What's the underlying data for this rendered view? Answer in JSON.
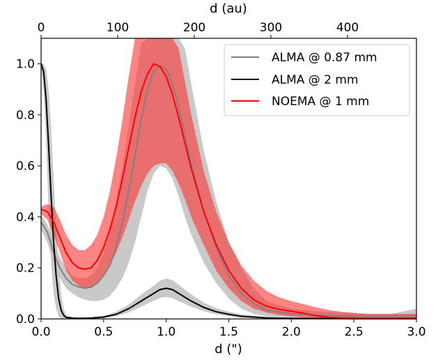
{
  "chart_data": {
    "type": "line",
    "xlabel": "d (\")",
    "x2label": "d (au)",
    "xlim": [
      0,
      3.0
    ],
    "ylim": [
      0,
      1.1
    ],
    "x2lim": [
      0,
      490
    ],
    "xticks": [
      "0.0",
      "0.5",
      "1.0",
      "1.5",
      "2.0",
      "2.5",
      "3.0"
    ],
    "yticks": [
      "0.0",
      "0.2",
      "0.4",
      "0.6",
      "0.8",
      "1.0"
    ],
    "x2ticks": [
      "0",
      "100",
      "200",
      "300",
      "400"
    ],
    "legend_position": "top-right",
    "series": [
      {
        "name": "ALMA @ 0.87 mm",
        "color": "#808080",
        "band_color": "#c0c0c0",
        "x": [
          0,
          0.05,
          0.1,
          0.15,
          0.2,
          0.25,
          0.3,
          0.35,
          0.4,
          0.45,
          0.5,
          0.55,
          0.6,
          0.65,
          0.7,
          0.75,
          0.8,
          0.85,
          0.9,
          0.95,
          1.0,
          1.05,
          1.1,
          1.15,
          1.2,
          1.3,
          1.4,
          1.5,
          1.6,
          1.7,
          1.8,
          2.0,
          2.2,
          2.4,
          2.6,
          2.8,
          3.0
        ],
        "y": [
          0.38,
          0.34,
          0.26,
          0.2,
          0.16,
          0.135,
          0.125,
          0.12,
          0.125,
          0.14,
          0.17,
          0.21,
          0.28,
          0.38,
          0.5,
          0.64,
          0.78,
          0.9,
          0.97,
          0.99,
          0.98,
          0.92,
          0.83,
          0.72,
          0.61,
          0.42,
          0.28,
          0.17,
          0.1,
          0.06,
          0.035,
          0.02,
          0.015,
          0.012,
          0.012,
          0.012,
          0.012
        ],
        "lower": [
          0.35,
          0.3,
          0.22,
          0.16,
          0.12,
          0.1,
          0.085,
          0.075,
          0.07,
          0.07,
          0.075,
          0.09,
          0.12,
          0.16,
          0.22,
          0.3,
          0.4,
          0.5,
          0.57,
          0.6,
          0.59,
          0.55,
          0.48,
          0.4,
          0.33,
          0.22,
          0.14,
          0.08,
          0.04,
          0.02,
          0.01,
          0.005,
          0.003,
          0.002,
          0.002,
          0.002,
          0.002
        ],
        "upper": [
          0.41,
          0.37,
          0.3,
          0.24,
          0.2,
          0.17,
          0.16,
          0.16,
          0.17,
          0.2,
          0.26,
          0.34,
          0.46,
          0.6,
          0.76,
          0.92,
          1.08,
          1.2,
          1.3,
          1.34,
          1.34,
          1.28,
          1.18,
          1.06,
          0.92,
          0.66,
          0.46,
          0.3,
          0.2,
          0.12,
          0.07,
          0.04,
          0.03,
          0.025,
          0.02,
          0.02,
          0.04
        ]
      },
      {
        "name": "ALMA @ 2 mm",
        "color": "#000000",
        "band_color": "#c0c0c0",
        "x": [
          0,
          0.02,
          0.04,
          0.06,
          0.08,
          0.1,
          0.12,
          0.14,
          0.16,
          0.18,
          0.2,
          0.25,
          0.3,
          0.4,
          0.5,
          0.6,
          0.7,
          0.8,
          0.9,
          0.95,
          1.0,
          1.05,
          1.1,
          1.2,
          1.3,
          1.4,
          1.5,
          1.6,
          1.8,
          2.0,
          2.5,
          3.0
        ],
        "y": [
          1.0,
          0.97,
          0.86,
          0.68,
          0.48,
          0.3,
          0.17,
          0.08,
          0.035,
          0.015,
          0.006,
          0.003,
          0.002,
          0.003,
          0.007,
          0.018,
          0.04,
          0.07,
          0.1,
          0.115,
          0.12,
          0.115,
          0.1,
          0.07,
          0.045,
          0.028,
          0.018,
          0.01,
          0.004,
          0.002,
          0.001,
          0.001
        ],
        "lower": [
          0.99,
          0.9,
          0.7,
          0.42,
          0.22,
          0.1,
          0.04,
          0.01,
          0.002,
          0.001,
          0.001,
          0.001,
          0.001,
          0.001,
          0.003,
          0.01,
          0.025,
          0.048,
          0.072,
          0.082,
          0.086,
          0.082,
          0.07,
          0.048,
          0.03,
          0.018,
          0.01,
          0.005,
          0.002,
          0.001,
          0.001,
          0.001
        ],
        "upper": [
          1.0,
          1.0,
          0.98,
          0.9,
          0.75,
          0.55,
          0.36,
          0.2,
          0.1,
          0.04,
          0.015,
          0.007,
          0.006,
          0.008,
          0.013,
          0.028,
          0.056,
          0.095,
          0.13,
          0.15,
          0.158,
          0.152,
          0.134,
          0.096,
          0.064,
          0.042,
          0.028,
          0.018,
          0.008,
          0.004,
          0.003,
          0.003
        ]
      },
      {
        "name": "NOEMA @ 1 mm",
        "color": "#ff0000",
        "band_color": "#ff3333",
        "x": [
          0,
          0.05,
          0.1,
          0.15,
          0.2,
          0.25,
          0.3,
          0.35,
          0.4,
          0.45,
          0.5,
          0.55,
          0.6,
          0.65,
          0.7,
          0.75,
          0.8,
          0.85,
          0.9,
          0.95,
          1.0,
          1.05,
          1.1,
          1.15,
          1.2,
          1.3,
          1.4,
          1.5,
          1.6,
          1.7,
          1.8,
          1.9,
          2.0,
          2.1,
          2.2,
          2.3,
          2.4,
          2.6,
          2.8,
          3.0
        ],
        "y": [
          0.43,
          0.42,
          0.38,
          0.32,
          0.26,
          0.22,
          0.2,
          0.195,
          0.2,
          0.23,
          0.28,
          0.35,
          0.44,
          0.55,
          0.67,
          0.79,
          0.89,
          0.96,
          1.0,
          0.99,
          0.95,
          0.88,
          0.79,
          0.69,
          0.59,
          0.42,
          0.29,
          0.19,
          0.12,
          0.075,
          0.05,
          0.038,
          0.03,
          0.022,
          0.012,
          0.006,
          0.004,
          0.003,
          0.003,
          0.003
        ],
        "lower": [
          0.41,
          0.39,
          0.33,
          0.26,
          0.19,
          0.15,
          0.13,
          0.12,
          0.12,
          0.14,
          0.17,
          0.21,
          0.26,
          0.32,
          0.39,
          0.46,
          0.52,
          0.57,
          0.6,
          0.61,
          0.61,
          0.58,
          0.53,
          0.47,
          0.4,
          0.29,
          0.19,
          0.12,
          0.07,
          0.04,
          0.025,
          0.015,
          0.01,
          0.006,
          0.003,
          0.002,
          0.001,
          0.001,
          0.001,
          0.001
        ],
        "upper": [
          0.44,
          0.45,
          0.44,
          0.39,
          0.33,
          0.29,
          0.27,
          0.27,
          0.29,
          0.33,
          0.4,
          0.5,
          0.63,
          0.78,
          0.95,
          1.1,
          1.1,
          1.1,
          1.1,
          1.1,
          1.1,
          1.1,
          1.06,
          0.93,
          0.8,
          0.58,
          0.42,
          0.3,
          0.21,
          0.15,
          0.11,
          0.085,
          0.07,
          0.058,
          0.045,
          0.035,
          0.028,
          0.02,
          0.02,
          0.02
        ]
      }
    ]
  }
}
